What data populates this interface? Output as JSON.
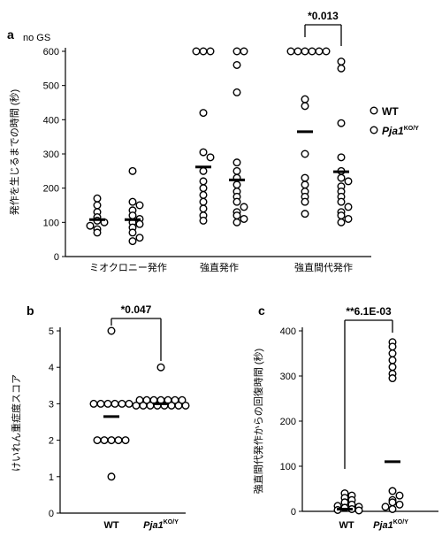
{
  "chart_data": [
    {
      "panel": "a",
      "type": "scatter",
      "ylabel": "発作を生じるまでの時間 (秒)",
      "ylim": [
        0,
        600
      ],
      "yticks": [
        0,
        100,
        200,
        300,
        400,
        500,
        600
      ],
      "top_label": "no GS",
      "categories": [
        "ミオクロニー発作",
        "強直発作",
        "強直間代発作"
      ],
      "legend": {
        "placement": "right",
        "wt": "WT",
        "ko": "Pja1",
        "ko_sup": "KO/Y"
      },
      "groups": [
        {
          "category": "ミオクロニー発作",
          "genotype": "WT",
          "mean": 108,
          "points": [
            170,
            150,
            130,
            115,
            105,
            100,
            90,
            80,
            70
          ]
        },
        {
          "category": "ミオクロニー発作",
          "genotype": "Pja1 KO/Y",
          "mean": 108,
          "points": [
            250,
            160,
            150,
            135,
            120,
            110,
            100,
            95,
            85,
            70,
            55,
            45
          ]
        },
        {
          "category": "強直発作",
          "genotype": "WT",
          "mean": 262,
          "points": [
            600,
            600,
            600,
            420,
            305,
            290,
            250,
            220,
            200,
            180,
            160,
            140,
            120,
            105
          ]
        },
        {
          "category": "強直発作",
          "genotype": "Pja1 KO/Y",
          "mean": 224,
          "points": [
            600,
            600,
            560,
            480,
            275,
            250,
            230,
            210,
            190,
            175,
            160,
            145,
            130,
            120,
            110,
            100
          ]
        },
        {
          "category": "強直間代発作",
          "genotype": "WT",
          "mean": 365,
          "points": [
            600,
            600,
            600,
            600,
            600,
            600,
            460,
            440,
            300,
            230,
            210,
            190,
            175,
            160,
            125
          ]
        },
        {
          "category": "強直間代発作",
          "genotype": "Pja1 KO/Y",
          "mean": 248,
          "points": [
            570,
            550,
            390,
            290,
            250,
            230,
            220,
            205,
            190,
            175,
            160,
            145,
            130,
            120,
            110,
            100
          ]
        }
      ],
      "significance": "*0.013"
    },
    {
      "panel": "b",
      "type": "scatter",
      "ylabel": "けいれん重症度スコア",
      "ylim": [
        0,
        5
      ],
      "yticks": [
        0,
        1,
        2,
        3,
        4,
        5
      ],
      "categories": [
        "WT",
        "Pja1"
      ],
      "category_sup": [
        "",
        "KO/Y"
      ],
      "groups": [
        {
          "genotype": "WT",
          "mean": 2.65,
          "points": [
            5,
            3,
            3,
            3,
            3,
            3,
            3,
            2,
            2,
            2,
            2,
            2,
            1
          ]
        },
        {
          "genotype": "Pja1 KO/Y",
          "mean": 3.0,
          "points": [
            4,
            3.1,
            3.1,
            3.1,
            3.1,
            3.1,
            3.1,
            3.1,
            2.95,
            2.95,
            2.95,
            2.95,
            2.95,
            2.95,
            2.95,
            2.95
          ]
        }
      ],
      "significance": "*0.047"
    },
    {
      "panel": "c",
      "type": "scatter",
      "ylabel": "強直間代発作からの回復時間 (秒)",
      "ylim": [
        0,
        400
      ],
      "yticks": [
        0,
        100,
        200,
        300,
        400
      ],
      "categories": [
        "WT",
        "Pja1"
      ],
      "category_sup": [
        "",
        "KO/Y"
      ],
      "groups": [
        {
          "genotype": "WT",
          "mean": 5,
          "points": [
            40,
            35,
            30,
            25,
            20,
            15,
            12,
            10,
            8,
            5,
            3,
            2
          ]
        },
        {
          "genotype": "Pja1 KO/Y",
          "mean": 110,
          "points": [
            375,
            365,
            350,
            335,
            320,
            305,
            295,
            45,
            35,
            25,
            20,
            15,
            10,
            5
          ]
        }
      ],
      "significance": "**6.1E-03"
    }
  ]
}
